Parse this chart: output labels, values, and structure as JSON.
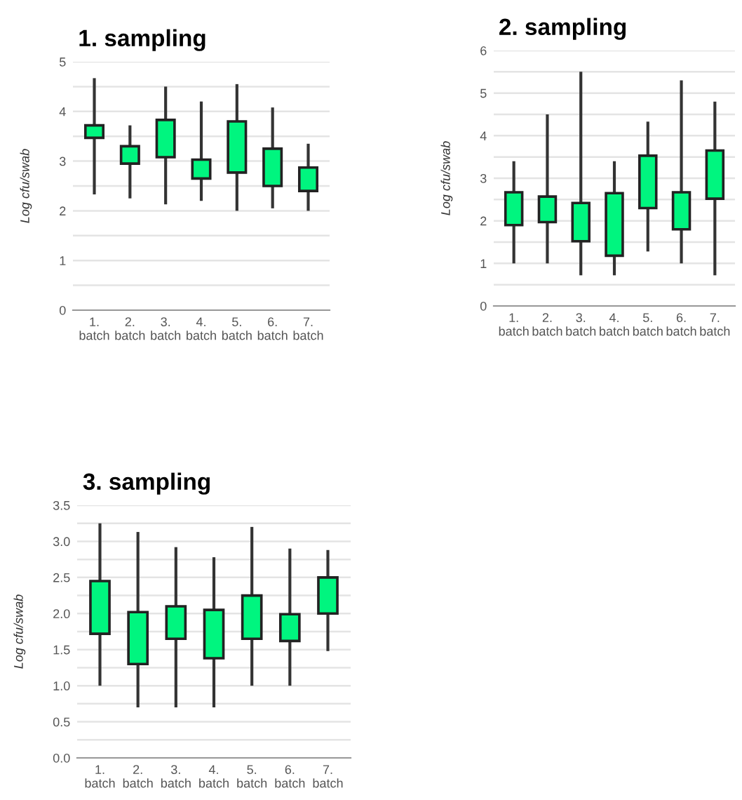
{
  "chart_data": [
    {
      "type": "candlestick",
      "title": "1. sampling",
      "ylabel": "Log cfu/swab",
      "color": "#00f57f",
      "categories": [
        "1.\nbatch",
        "2.\nbatch",
        "3.\nbatch",
        "4.\nbatch",
        "5.\nbatch",
        "6.\nbatch",
        "7.\nbatch"
      ],
      "ohlc": [
        [
          3.47,
          4.67,
          2.33,
          3.72
        ],
        [
          2.95,
          3.72,
          2.25,
          3.3
        ],
        [
          3.08,
          4.5,
          2.13,
          3.83
        ],
        [
          2.65,
          4.2,
          2.2,
          3.03
        ],
        [
          2.77,
          4.55,
          2.0,
          3.8
        ],
        [
          2.5,
          4.08,
          2.05,
          3.25
        ],
        [
          2.4,
          3.35,
          2.0,
          2.87
        ]
      ],
      "ylim": [
        0,
        5
      ],
      "yticks": [
        0,
        {
          "value": 0.5,
          "label": null
        },
        1,
        {
          "value": 1.5,
          "label": null
        },
        2,
        {
          "value": 2.5,
          "label": null
        },
        3,
        {
          "value": 3.5,
          "label": null
        },
        4,
        {
          "value": 4.5,
          "label": null
        },
        5
      ],
      "grid": "y"
    },
    {
      "type": "candlestick",
      "title": "2. sampling",
      "ylabel": "Log cfu/swab",
      "color": "#00f57f",
      "categories": [
        "1.\nbatch",
        "2.\nbatch",
        "3.\nbatch",
        "4.\nbatch",
        "5.\nbatch",
        "6.\nbatch",
        "7.\nbatch"
      ],
      "ohlc": [
        [
          1.9,
          3.4,
          1.0,
          2.67
        ],
        [
          1.97,
          4.5,
          1.0,
          2.57
        ],
        [
          1.52,
          5.5,
          0.72,
          2.42
        ],
        [
          1.18,
          3.4,
          0.72,
          2.65
        ],
        [
          2.3,
          4.33,
          1.28,
          3.53
        ],
        [
          1.8,
          5.3,
          1.0,
          2.67
        ],
        [
          2.52,
          4.8,
          0.72,
          3.65
        ]
      ],
      "ylim": [
        0,
        6
      ],
      "yticks": [
        0,
        {
          "value": 0.5,
          "label": null
        },
        1,
        {
          "value": 1.5,
          "label": null
        },
        2,
        {
          "value": 2.5,
          "label": null
        },
        3,
        {
          "value": 3.5,
          "label": null
        },
        4,
        {
          "value": 4.5,
          "label": null
        },
        5,
        {
          "value": 5.5,
          "label": null
        },
        6
      ],
      "grid": "y"
    },
    {
      "type": "candlestick",
      "title": "3. sampling",
      "ylabel": "Log cfu/swab",
      "color": "#00f57f",
      "categories": [
        "1.\nbatch",
        "2.\nbatch",
        "3.\nbatch",
        "4.\nbatch",
        "5.\nbatch",
        "6.\nbatch",
        "7.\nbatch"
      ],
      "ohlc": [
        [
          1.72,
          3.25,
          1.0,
          2.45
        ],
        [
          1.3,
          3.13,
          0.7,
          2.02
        ],
        [
          1.65,
          2.92,
          0.7,
          2.1
        ],
        [
          1.38,
          2.78,
          0.7,
          2.05
        ],
        [
          1.65,
          3.2,
          1.0,
          2.25
        ],
        [
          1.62,
          2.9,
          1.0,
          1.99
        ],
        [
          2.0,
          2.88,
          1.48,
          2.5
        ]
      ],
      "ylim": [
        0,
        3.5
      ],
      "yticks": [
        {
          "value": 0,
          "label": "0.0"
        },
        {
          "value": 0.25,
          "label": null
        },
        {
          "value": 0.5,
          "label": "0.5"
        },
        {
          "value": 0.75,
          "label": null
        },
        {
          "value": 1,
          "label": "1.0"
        },
        {
          "value": 1.25,
          "label": null
        },
        {
          "value": 1.5,
          "label": "1.5"
        },
        {
          "value": 1.75,
          "label": null
        },
        {
          "value": 2,
          "label": "2.0"
        },
        {
          "value": 2.25,
          "label": null
        },
        {
          "value": 2.5,
          "label": "2.5"
        },
        {
          "value": 2.75,
          "label": null
        },
        {
          "value": 3,
          "label": "3.0"
        },
        {
          "value": 3.25,
          "label": null
        },
        {
          "value": 3.5,
          "label": "3.5"
        }
      ],
      "grid": "y"
    }
  ]
}
